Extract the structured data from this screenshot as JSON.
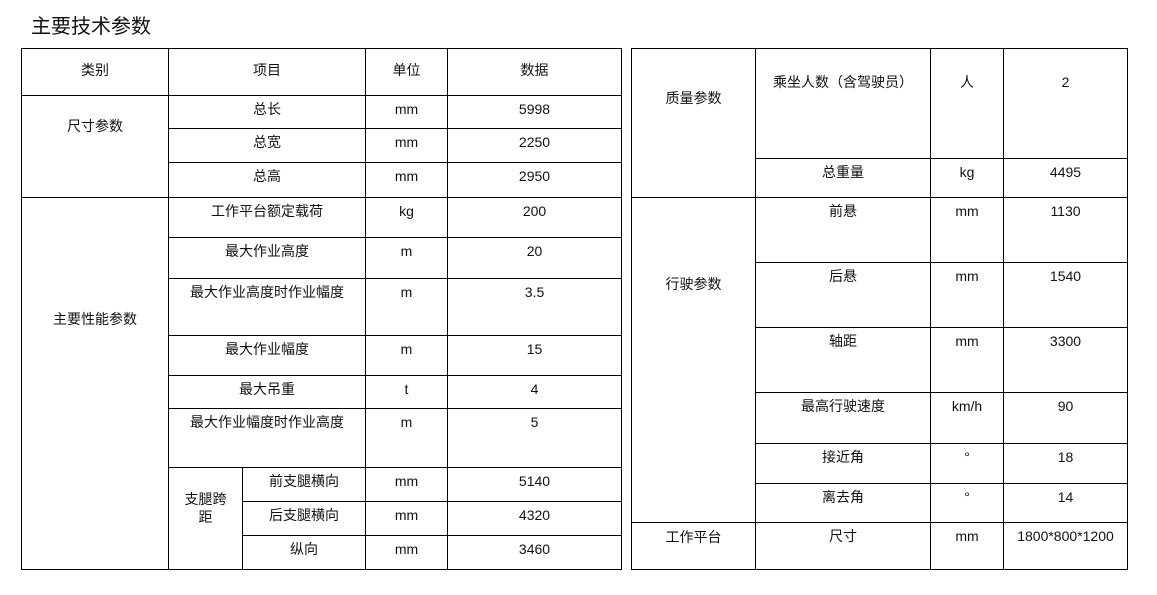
{
  "title": "主要技术参数",
  "left": {
    "header": [
      "类别",
      "项目",
      "单位",
      "数据"
    ],
    "groups": {
      "size": "尺寸参数",
      "performance": "主要性能参数",
      "outrigger": "支腿跨距"
    },
    "rows": [
      {
        "item": "总长",
        "unit": "mm",
        "value": "5998"
      },
      {
        "item": "总宽",
        "unit": "mm",
        "value": "2250"
      },
      {
        "item": "总高",
        "unit": "mm",
        "value": "2950"
      },
      {
        "item": "工作平台额定载荷",
        "unit": "kg",
        "value": "200"
      },
      {
        "item": "最大作业高度",
        "unit": "m",
        "value": "20"
      },
      {
        "item": "最大作业高度时作业幅度",
        "unit": "m",
        "value": "3.5"
      },
      {
        "item": "最大作业幅度",
        "unit": "m",
        "value": "15"
      },
      {
        "item": "最大吊重",
        "unit": "t",
        "value": "4"
      },
      {
        "item": "最大作业幅度时作业高度",
        "unit": "m",
        "value": "5"
      },
      {
        "item": "前支腿横向",
        "unit": "mm",
        "value": "5140"
      },
      {
        "item": "后支腿横向",
        "unit": "mm",
        "value": "4320"
      },
      {
        "item": "纵向",
        "unit": "mm",
        "value": "3460"
      }
    ]
  },
  "right": {
    "groups": {
      "mass": "质量参数",
      "driving": "行驶参数",
      "platform": "工作平台"
    },
    "rows": [
      {
        "item": "乘坐人数（含驾驶员）",
        "unit": "人",
        "value": "2"
      },
      {
        "item": "总重量",
        "unit": "kg",
        "value": "4495"
      },
      {
        "item": "前悬",
        "unit": "mm",
        "value": "1130"
      },
      {
        "item": "后悬",
        "unit": "mm",
        "value": "1540"
      },
      {
        "item": "轴距",
        "unit": "mm",
        "value": "3300"
      },
      {
        "item": "最高行驶速度",
        "unit": "km/h",
        "value": "90"
      },
      {
        "item": "接近角",
        "unit": "°",
        "value": "18"
      },
      {
        "item": "离去角",
        "unit": "°",
        "value": "14"
      },
      {
        "item": "尺寸",
        "unit": "mm",
        "value": "1800*800*1200"
      }
    ]
  }
}
